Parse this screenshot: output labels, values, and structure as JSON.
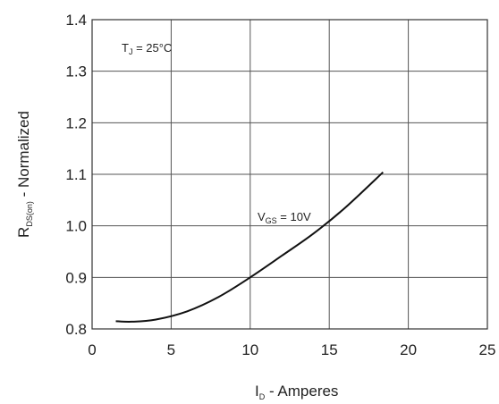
{
  "chart_data": {
    "type": "line",
    "title": "",
    "xlabel": {
      "main": "I",
      "sub": "D",
      "rest": " - Amperes"
    },
    "ylabel": {
      "main": "R",
      "sub": "DS(on)",
      "rest": " - Normalized"
    },
    "xlim": [
      0,
      25
    ],
    "ylim": [
      0.8,
      1.4
    ],
    "x_ticks": [
      0,
      5,
      10,
      15,
      20,
      25
    ],
    "x_tick_labels": [
      "0",
      "5",
      "10",
      "15",
      "20",
      "25"
    ],
    "y_ticks": [
      0.8,
      0.9,
      1.0,
      1.1,
      1.2,
      1.3,
      1.4
    ],
    "y_tick_labels": [
      "0.8",
      "0.9",
      "1.0",
      "1.1",
      "1.2",
      "1.3",
      "1.4"
    ],
    "grid": true,
    "annotations": [
      {
        "main": "T",
        "sub": "J",
        "rest": " = 25°C"
      },
      {
        "main": "V",
        "sub": "GS",
        "rest": " = 10V"
      }
    ],
    "series": [
      {
        "x": [
          1.5,
          2.5,
          4,
          6,
          8,
          10,
          12,
          14,
          16,
          18.4
        ],
        "y": [
          0.815,
          0.814,
          0.818,
          0.834,
          0.862,
          0.9,
          0.942,
          0.985,
          1.035,
          1.104
        ]
      }
    ]
  }
}
